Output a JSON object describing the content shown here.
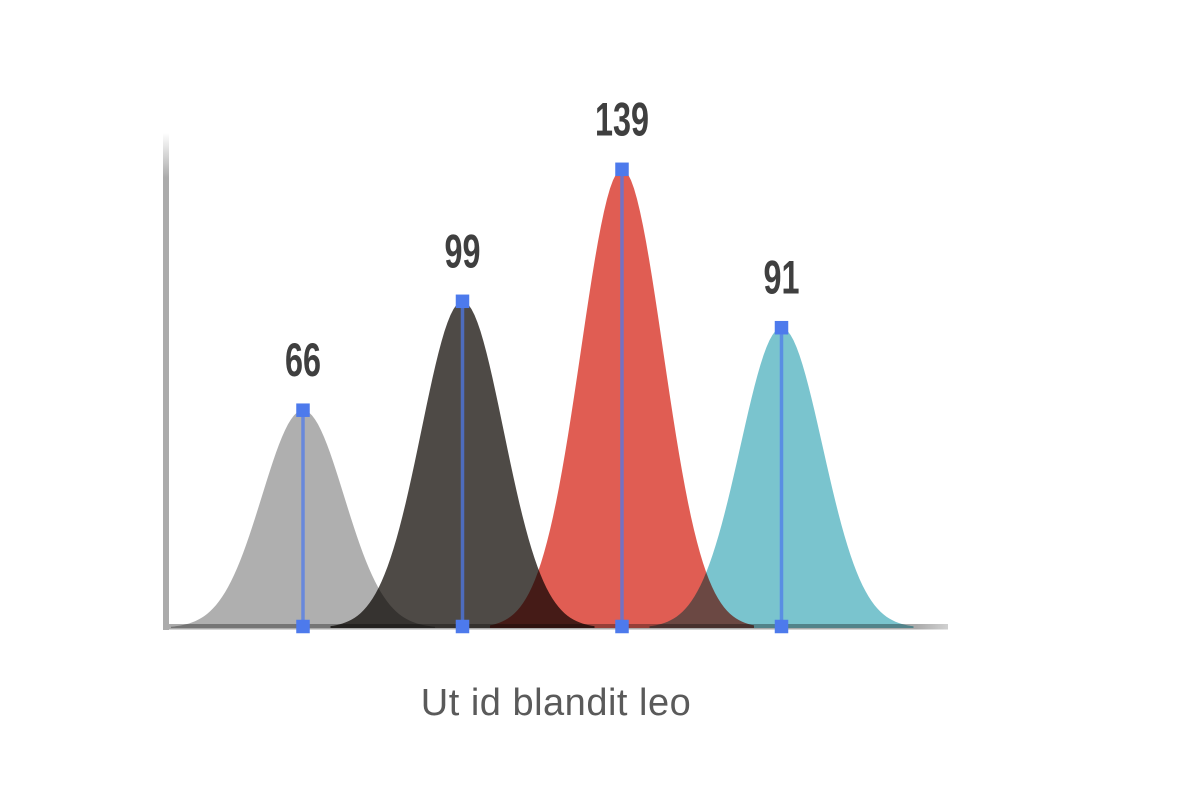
{
  "chart_data": {
    "type": "area",
    "subtype": "overlapping-bell-curves",
    "title": "Ut id blandit leo",
    "series": [
      {
        "name": "peak-1",
        "label": "66",
        "value": 66,
        "color": "#AFAFAF"
      },
      {
        "name": "peak-2",
        "label": "99",
        "value": 99,
        "color": "#4E4A46"
      },
      {
        "name": "peak-3",
        "label": "139",
        "value": 139,
        "color": "#E05D53"
      },
      {
        "name": "peak-4",
        "label": "91",
        "value": 91,
        "color": "#7AC4CE"
      }
    ],
    "ylim": [
      0,
      150
    ],
    "grid": false,
    "legend": "none",
    "blend_mode": "multiply",
    "colors": {
      "marker": "#4D7AEC",
      "marker_line": "#4D7AEC",
      "axis": "#ABABAB",
      "value_label": "#3F3F3F",
      "title": "#5A5A5A"
    }
  }
}
